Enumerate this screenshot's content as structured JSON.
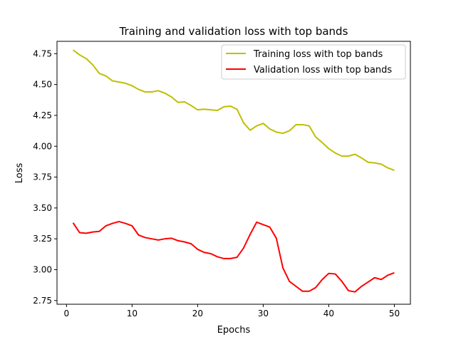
{
  "chart_data": {
    "type": "line",
    "title": "Training and validation loss with top bands",
    "xlabel": "Epochs",
    "ylabel": "Loss",
    "xlim": [
      -1.45,
      52.45
    ],
    "ylim": [
      2.72,
      4.85
    ],
    "x_ticks": [
      0,
      10,
      20,
      30,
      40,
      50
    ],
    "x_tick_labels": [
      "0",
      "10",
      "20",
      "30",
      "40",
      "50"
    ],
    "y_ticks": [
      2.75,
      3.0,
      3.25,
      3.5,
      3.75,
      4.0,
      4.25,
      4.5,
      4.75
    ],
    "y_tick_labels": [
      "2.75",
      "3.00",
      "3.25",
      "3.50",
      "3.75",
      "4.00",
      "4.25",
      "4.50",
      "4.75"
    ],
    "grid": false,
    "legend_position": "top-right",
    "x": [
      1,
      2,
      3,
      4,
      5,
      6,
      7,
      8,
      9,
      10,
      11,
      12,
      13,
      14,
      15,
      16,
      17,
      18,
      19,
      20,
      21,
      22,
      23,
      24,
      25,
      26,
      27,
      28,
      29,
      30,
      31,
      32,
      33,
      34,
      35,
      36,
      37,
      38,
      39,
      40,
      41,
      42,
      43,
      44,
      45,
      46,
      47,
      48,
      49,
      50
    ],
    "series": [
      {
        "name": "Training loss with top bands",
        "color": "#bfbf00",
        "values": [
          4.78,
          4.74,
          4.71,
          4.66,
          4.59,
          4.57,
          4.53,
          4.52,
          4.51,
          4.49,
          4.46,
          4.44,
          4.44,
          4.45,
          4.43,
          4.4,
          4.355,
          4.36,
          4.33,
          4.295,
          4.3,
          4.295,
          4.29,
          4.32,
          4.325,
          4.3,
          4.19,
          4.13,
          4.165,
          4.185,
          4.14,
          4.115,
          4.105,
          4.125,
          4.175,
          4.175,
          4.165,
          4.075,
          4.03,
          3.98,
          3.945,
          3.92,
          3.92,
          3.935,
          3.905,
          3.87,
          3.865,
          3.855,
          3.825,
          3.805
        ]
      },
      {
        "name": "Validation loss with top bands",
        "color": "#ff0000",
        "values": [
          3.38,
          3.3,
          3.295,
          3.305,
          3.31,
          3.355,
          3.375,
          3.39,
          3.375,
          3.355,
          3.28,
          3.26,
          3.25,
          3.24,
          3.25,
          3.255,
          3.235,
          3.225,
          3.21,
          3.165,
          3.14,
          3.13,
          3.105,
          3.09,
          3.09,
          3.1,
          3.175,
          3.285,
          3.385,
          3.365,
          3.345,
          3.255,
          3.015,
          2.905,
          2.865,
          2.825,
          2.825,
          2.855,
          2.92,
          2.97,
          2.965,
          2.905,
          2.83,
          2.82,
          2.865,
          2.9,
          2.935,
          2.92,
          2.955,
          2.975
        ]
      }
    ]
  }
}
